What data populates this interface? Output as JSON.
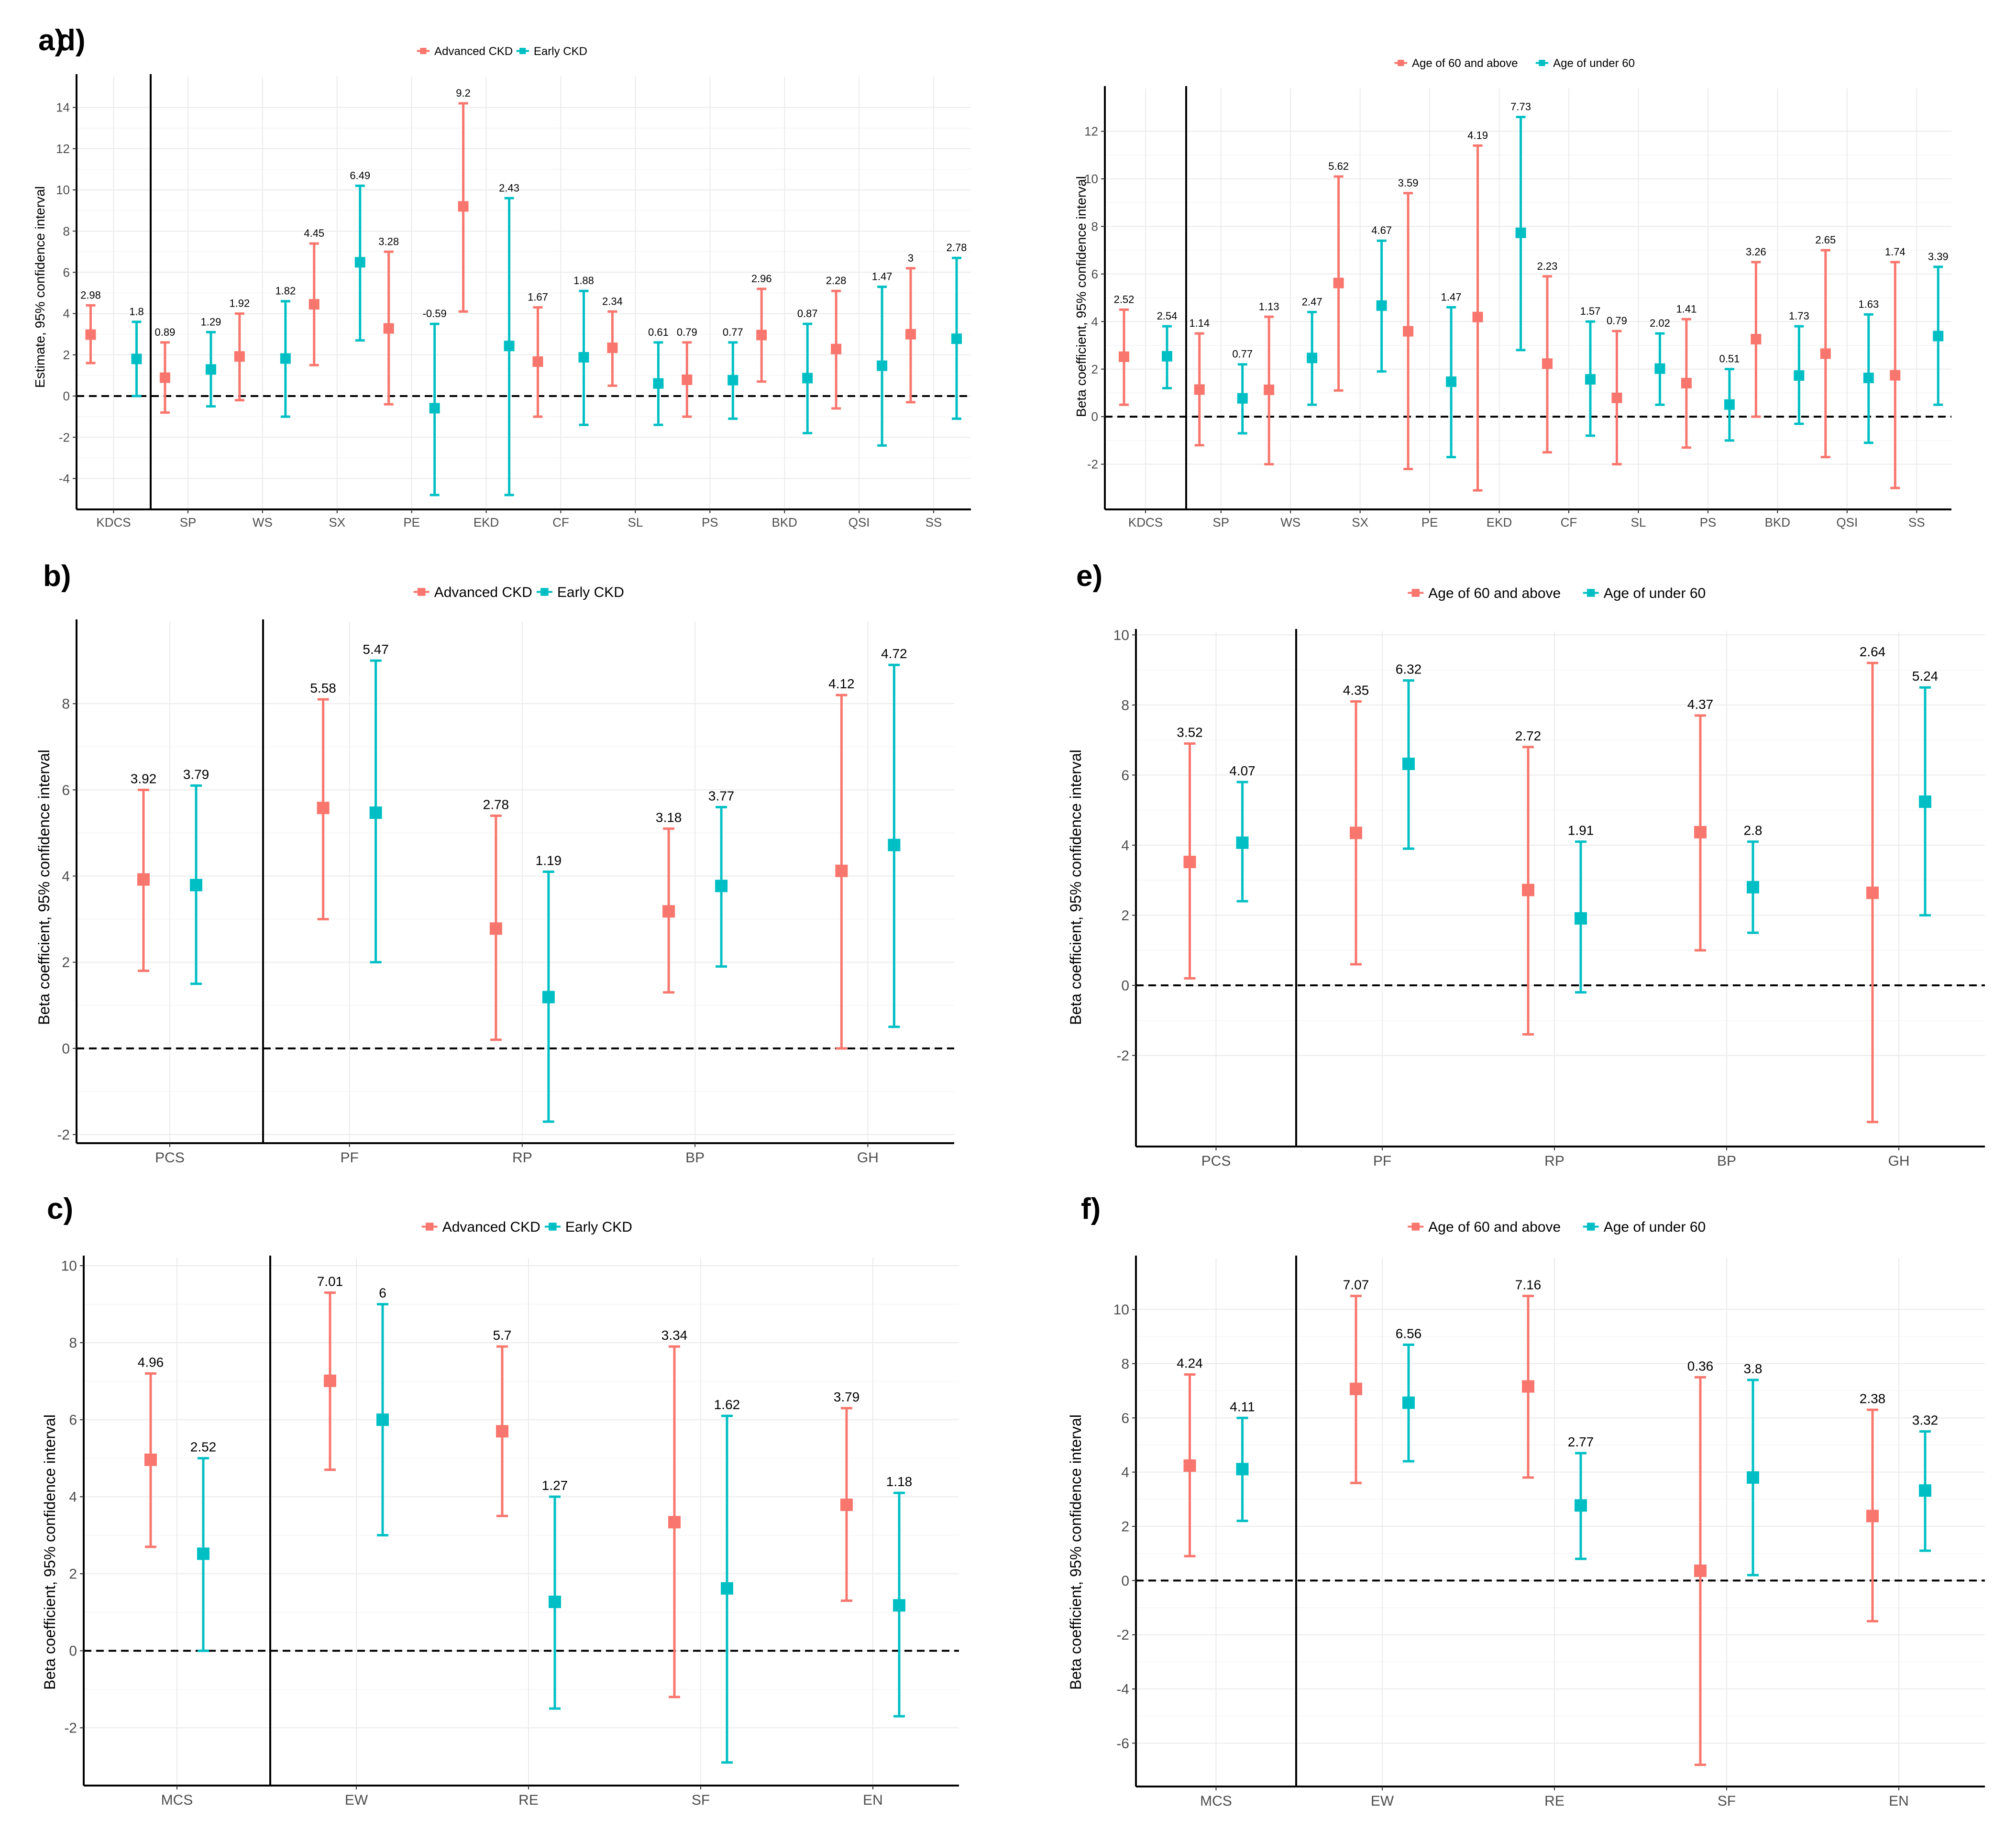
{
  "figure": {
    "series_colors": {
      "advanced": "#F8766D",
      "early": "#00BFC4"
    }
  },
  "chart_data": [
    {
      "panel_label": "a)",
      "type": "errorbar",
      "ylabel": "Estimate, 95% confidence interval",
      "legend": [
        "Advanced CKD",
        "Early CKD"
      ],
      "legend_position": "top",
      "ylim": [
        -5.5,
        15.5
      ],
      "yticks": [
        -4,
        -2,
        0,
        2,
        4,
        6,
        8,
        10,
        12,
        14
      ],
      "categories": [
        "KDCS",
        "SP",
        "WS",
        "SX",
        "PE",
        "EKD",
        "CF",
        "SL",
        "PS",
        "BKD",
        "QSI",
        "SS"
      ],
      "series": [
        {
          "name": "Advanced CKD",
          "values": [
            2.98,
            0.89,
            1.92,
            4.45,
            3.28,
            9.2,
            1.67,
            2.34,
            0.79,
            2.96,
            2.28,
            3
          ],
          "lower": [
            1.6,
            -0.8,
            -0.2,
            1.5,
            -0.4,
            4.1,
            -1,
            0.5,
            -1,
            0.7,
            -0.6,
            -0.3
          ],
          "upper": [
            4.4,
            2.6,
            4.0,
            7.4,
            7.0,
            14.2,
            4.3,
            4.1,
            2.6,
            5.2,
            5.1,
            6.2
          ]
        },
        {
          "name": "Early CKD",
          "values": [
            1.8,
            1.29,
            1.82,
            6.49,
            -0.59,
            2.43,
            1.88,
            0.61,
            0.77,
            0.87,
            1.47,
            2.78
          ],
          "lower": [
            0,
            -0.5,
            -1,
            2.7,
            -4.8,
            -4.8,
            -1.4,
            -1.4,
            -1.1,
            -1.8,
            -2.4,
            -1.1
          ],
          "upper": [
            3.6,
            3.1,
            4.6,
            10.2,
            3.5,
            9.6,
            5.1,
            2.6,
            2.6,
            3.5,
            5.3,
            6.7
          ]
        }
      ]
    },
    {
      "panel_label": "d)",
      "type": "errorbar",
      "ylabel": "Beta coefficient, 95% confidence interval",
      "legend": [
        "Age of 60 and above",
        "Age of under 60"
      ],
      "legend_position": "top",
      "ylim": [
        -3.9,
        13.8
      ],
      "yticks": [
        -2,
        0,
        2,
        4,
        6,
        8,
        10,
        12
      ],
      "categories": [
        "KDCS",
        "SP",
        "WS",
        "SX",
        "PE",
        "EKD",
        "CF",
        "SL",
        "PS",
        "BKD",
        "QSI",
        "SS"
      ],
      "series": [
        {
          "name": "Age of 60 and above",
          "values": [
            2.52,
            1.14,
            1.13,
            5.62,
            3.59,
            4.19,
            2.23,
            0.79,
            1.41,
            3.26,
            2.65,
            1.74
          ],
          "lower": [
            0.5,
            -1.2,
            -2,
            1.1,
            -2.2,
            -3.1,
            -1.5,
            -2,
            -1.3,
            0,
            -1.7,
            -3
          ],
          "upper": [
            4.5,
            3.5,
            4.2,
            10.1,
            9.4,
            11.4,
            5.9,
            3.6,
            4.1,
            6.5,
            7.0,
            6.5
          ]
        },
        {
          "name": "Age of under 60",
          "values": [
            2.54,
            0.77,
            2.47,
            4.67,
            1.47,
            7.73,
            1.57,
            2.02,
            0.51,
            1.73,
            1.63,
            3.39
          ],
          "lower": [
            1.2,
            -0.7,
            0.5,
            1.9,
            -1.7,
            2.8,
            -0.8,
            0.5,
            -1,
            -0.3,
            -1.1,
            0.5
          ],
          "upper": [
            3.8,
            2.2,
            4.4,
            7.4,
            4.6,
            12.6,
            4.0,
            3.5,
            2,
            3.8,
            4.3,
            6.3
          ]
        }
      ]
    },
    {
      "panel_label": "b)",
      "type": "errorbar",
      "ylabel": "Beta coefficient, 95% confidence interval",
      "legend": [
        "Advanced CKD",
        "Early CKD"
      ],
      "legend_position": "top",
      "ylim": [
        -2.2,
        9.9
      ],
      "yticks": [
        -2,
        0,
        2,
        4,
        6,
        8
      ],
      "categories": [
        "PCS",
        "PF",
        "RP",
        "BP",
        "GH"
      ],
      "series": [
        {
          "name": "Advanced CKD",
          "values": [
            3.92,
            5.58,
            2.78,
            3.18,
            4.12
          ],
          "lower": [
            1.8,
            3.0,
            0.2,
            1.3,
            0
          ],
          "upper": [
            6.0,
            8.1,
            5.4,
            5.1,
            8.2
          ]
        },
        {
          "name": "Early CKD",
          "values": [
            3.79,
            5.47,
            1.19,
            3.77,
            4.72
          ],
          "lower": [
            1.5,
            2.0,
            -1.7,
            1.9,
            0.5
          ],
          "upper": [
            6.1,
            9.0,
            4.1,
            5.6,
            8.9
          ]
        }
      ]
    },
    {
      "panel_label": "e)",
      "type": "errorbar",
      "ylabel": "Beta coefficient, 95% confidence interval",
      "legend": [
        "Age of 60 and above",
        "Age of under 60"
      ],
      "legend_position": "top",
      "ylim": [
        -4.6,
        10.1
      ],
      "yticks": [
        -2,
        0,
        2,
        4,
        6,
        8,
        10
      ],
      "categories": [
        "PCS",
        "PF",
        "RP",
        "BP",
        "GH"
      ],
      "series": [
        {
          "name": "Age of 60 and above",
          "values": [
            3.52,
            4.35,
            2.72,
            4.37,
            2.64
          ],
          "lower": [
            0.2,
            0.6,
            -1.4,
            1.0,
            -3.9
          ],
          "upper": [
            6.9,
            8.1,
            6.8,
            7.7,
            9.2
          ]
        },
        {
          "name": "Age of under 60",
          "values": [
            4.07,
            6.32,
            1.91,
            2.8,
            5.24
          ],
          "lower": [
            2.4,
            3.9,
            -0.2,
            1.5,
            2.0
          ],
          "upper": [
            5.8,
            8.7,
            4.1,
            4.1,
            8.5
          ]
        }
      ]
    },
    {
      "panel_label": "c)",
      "type": "errorbar",
      "ylabel": "Beta coefficient, 95% confidence interval",
      "legend": [
        "Advanced CKD",
        "Early CKD"
      ],
      "legend_position": "top",
      "ylim": [
        -3.5,
        10.2
      ],
      "yticks": [
        -2,
        0,
        2,
        4,
        6,
        8,
        10
      ],
      "categories": [
        "MCS",
        "EW",
        "RE",
        "SF",
        "EN"
      ],
      "series": [
        {
          "name": "Advanced CKD",
          "values": [
            4.96,
            7.01,
            5.7,
            3.34,
            3.79
          ],
          "lower": [
            2.7,
            4.7,
            3.5,
            -1.2,
            1.3
          ],
          "upper": [
            7.2,
            9.3,
            7.9,
            7.9,
            6.3
          ]
        },
        {
          "name": "Early CKD",
          "values": [
            2.52,
            6,
            1.27,
            1.62,
            1.18
          ],
          "lower": [
            0,
            3.0,
            -1.5,
            -2.9,
            -1.7
          ],
          "upper": [
            5.0,
            9.0,
            4.0,
            6.1,
            4.1
          ]
        }
      ]
    },
    {
      "panel_label": "f)",
      "type": "errorbar",
      "ylabel": "Beta coefficient, 95% confidence interval",
      "legend": [
        "Age of 60 and above",
        "Age of under 60"
      ],
      "legend_position": "top",
      "ylim": [
        -7.6,
        11.9
      ],
      "yticks": [
        -6,
        -4,
        -2,
        0,
        2,
        4,
        6,
        8,
        10
      ],
      "categories": [
        "MCS",
        "EW",
        "RE",
        "SF",
        "EN"
      ],
      "series": [
        {
          "name": "Age of 60 and above",
          "values": [
            4.24,
            7.07,
            7.16,
            0.36,
            2.38
          ],
          "lower": [
            0.9,
            3.6,
            3.8,
            -6.8,
            -1.5
          ],
          "upper": [
            7.6,
            10.5,
            10.5,
            7.5,
            6.3
          ]
        },
        {
          "name": "Age of under 60",
          "values": [
            4.11,
            6.56,
            2.77,
            3.8,
            3.32
          ],
          "lower": [
            2.2,
            4.4,
            0.8,
            0.2,
            1.1
          ],
          "upper": [
            6.0,
            8.7,
            4.7,
            7.4,
            5.5
          ]
        }
      ]
    }
  ]
}
